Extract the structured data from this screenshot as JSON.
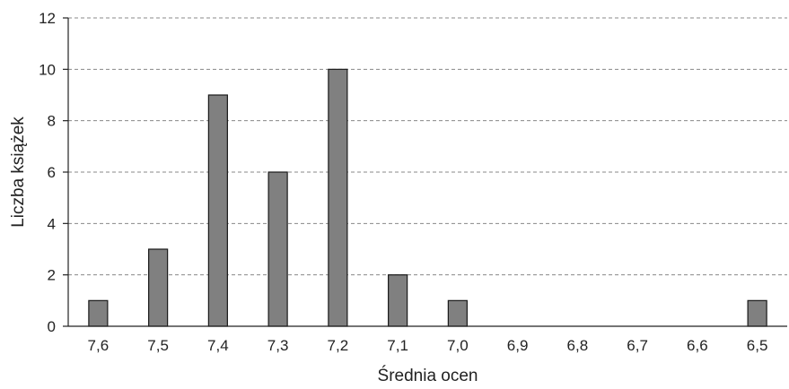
{
  "chart_data": {
    "type": "bar",
    "title": "",
    "xlabel": "Średnia ocen",
    "ylabel": "Liczba książek",
    "categories": [
      "7,6",
      "7,5",
      "7,4",
      "7,3",
      "7,2",
      "7,1",
      "7,0",
      "6,9",
      "6,8",
      "6,7",
      "6,6",
      "6,5"
    ],
    "values": [
      1,
      3,
      9,
      6,
      10,
      2,
      1,
      0,
      0,
      0,
      0,
      1
    ],
    "ylim": [
      0,
      12
    ],
    "yticks": [
      "0",
      "2",
      "4",
      "6",
      "8",
      "10",
      "12"
    ],
    "grid": "horizontal dashed",
    "bar_color": "#808080",
    "bar_edge_color": "#1a1a1a"
  }
}
